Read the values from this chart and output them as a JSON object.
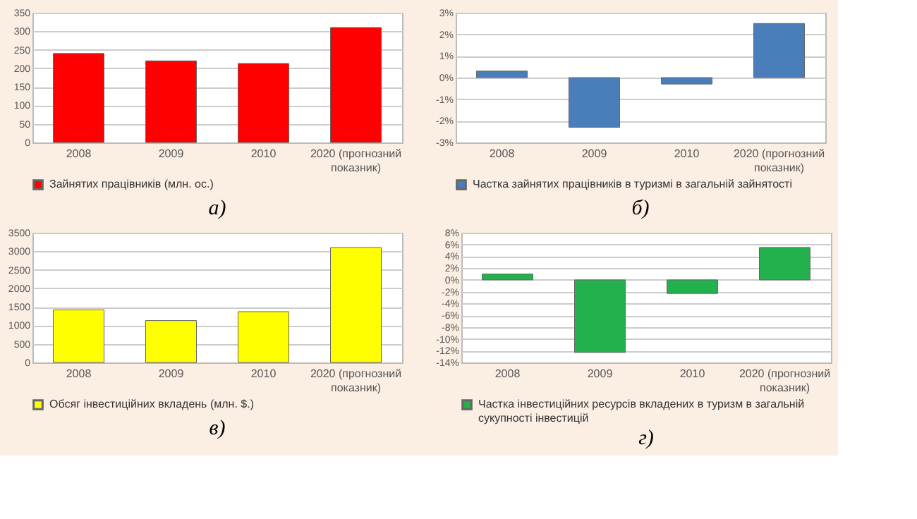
{
  "chart_data": [
    {
      "type": "bar",
      "categories": [
        "2008",
        "2009",
        "2010",
        "2020 (прогнозний показник)"
      ],
      "series": [
        {
          "name": "Зайнятих працівників (млн. ос.)",
          "color": "#ff0000",
          "values": [
            240,
            220,
            213,
            310
          ]
        }
      ],
      "ylim": [
        0,
        350
      ],
      "yticks": [
        0,
        50,
        100,
        150,
        200,
        250,
        300,
        350
      ],
      "grid": "y",
      "legend": "bottom",
      "annotations": [
        "а)"
      ]
    },
    {
      "type": "bar",
      "categories": [
        "2008",
        "2009",
        "2010",
        "2020 (прогнозний показник)"
      ],
      "series": [
        {
          "name": "Частка зайнятих працівників в туризмі в загальній зайнятості",
          "color": "#4a7ebb",
          "values": [
            0.3,
            -2.3,
            -0.3,
            2.5
          ]
        }
      ],
      "ylim": [
        -3,
        3
      ],
      "yticks": [
        {
          "value": -3,
          "label": "-3%"
        },
        {
          "value": -2,
          "label": "-2%"
        },
        {
          "value": -1,
          "label": "-1%"
        },
        {
          "value": 0,
          "label": "0%"
        },
        {
          "value": 1,
          "label": "1%"
        },
        {
          "value": 2,
          "label": "2%"
        },
        {
          "value": 3,
          "label": "3%"
        }
      ],
      "grid": "y",
      "legend": "bottom",
      "annotations": [
        "б)"
      ]
    },
    {
      "type": "bar",
      "categories": [
        "2008",
        "2009",
        "2010",
        "2020 (прогнозний показник)"
      ],
      "series": [
        {
          "name": "Обсяг інвестиційних вкладень (млн. $.)",
          "color": "#ffff00",
          "values": [
            1420,
            1130,
            1370,
            3100
          ]
        }
      ],
      "ylim": [
        0,
        3500
      ],
      "yticks": [
        0,
        500,
        1000,
        1500,
        2000,
        2500,
        3000,
        3500
      ],
      "grid": "y",
      "legend": "bottom",
      "annotations": [
        "в)"
      ]
    },
    {
      "type": "bar",
      "categories": [
        "2008",
        "2009",
        "2010",
        "2020 (прогнозний показник)"
      ],
      "series": [
        {
          "name": "Частка інвестиційних ресурсів вкладених в туризм в загальній сукупності інвестицій",
          "color": "#22b14c",
          "values": [
            1,
            -12.3,
            -2.3,
            5.5
          ]
        }
      ],
      "ylim": [
        -14,
        8
      ],
      "yticks": [
        {
          "value": -14,
          "label": "-14%"
        },
        {
          "value": -12,
          "label": "-12%"
        },
        {
          "value": -10,
          "label": "-10%"
        },
        {
          "value": -8,
          "label": "-8%"
        },
        {
          "value": -6,
          "label": "-6%"
        },
        {
          "value": -4,
          "label": "-4%"
        },
        {
          "value": -2,
          "label": "-2%"
        },
        {
          "value": 0,
          "label": "0%"
        },
        {
          "value": 2,
          "label": "2%"
        },
        {
          "value": 4,
          "label": "4%"
        },
        {
          "value": 6,
          "label": "6%"
        },
        {
          "value": 8,
          "label": "8%"
        }
      ],
      "grid": "y",
      "legend": "bottom",
      "annotations": [
        "г)"
      ]
    }
  ]
}
